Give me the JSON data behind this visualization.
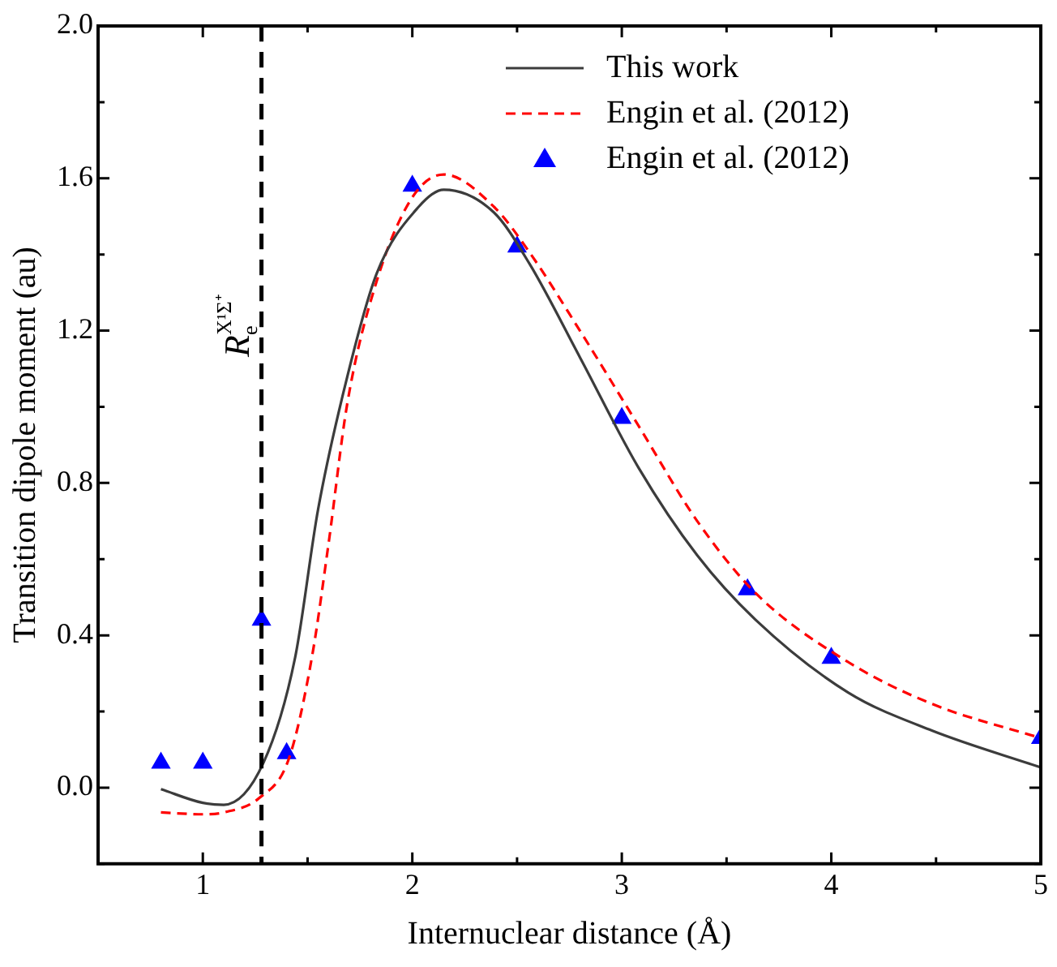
{
  "chart_data": {
    "type": "line",
    "xlabel": "Internuclear distance (Å)",
    "ylabel": "Transition dipole moment (au)",
    "xlim": [
      0.5,
      5
    ],
    "xticks": [
      1,
      2,
      3,
      4,
      5,
      {
        "value": 1.5,
        "label": null
      },
      {
        "value": 2.5,
        "label": null
      },
      {
        "value": 3.5,
        "label": null
      },
      {
        "value": 4.5,
        "label": null
      }
    ],
    "ylim": [
      -0.2,
      2.0
    ],
    "yticks": [
      {
        "value": 0,
        "label": "0.0"
      },
      {
        "value": 0.4,
        "label": "0.4"
      },
      {
        "value": 0.8,
        "label": "0.8"
      },
      {
        "value": 1.2,
        "label": "1.2"
      },
      {
        "value": 1.6,
        "label": "1.6"
      },
      {
        "value": 2,
        "label": "2.0"
      },
      {
        "value": 0.2,
        "label": null
      },
      {
        "value": 0.6,
        "label": null
      },
      {
        "value": 1.0,
        "label": null
      },
      {
        "value": 1.4,
        "label": null
      },
      {
        "value": 1.8,
        "label": null
      },
      {
        "value": -0.2,
        "label": null
      }
    ],
    "grid": false,
    "legend": "top right",
    "series": [
      {
        "name": "This work",
        "color": "#3c3c3c",
        "line_style": "solid",
        "marker": "none",
        "x": [
          0.8,
          1.0,
          1.1,
          1.29,
          1.44,
          1.55,
          1.69,
          1.83,
          2.03,
          2.15,
          2.39,
          2.56,
          2.8,
          3.08,
          3.36,
          3.64,
          4.08,
          4.48,
          5.0
        ],
        "values": [
          -0.004,
          -0.04,
          -0.045,
          0.066,
          0.34,
          0.73,
          1.08,
          1.35,
          1.525,
          1.57,
          1.51,
          1.375,
          1.13,
          0.84,
          0.61,
          0.44,
          0.25,
          0.15,
          0.053
        ]
      },
      {
        "name": "Engin et al. (2012)",
        "color": "#ff0000",
        "line_style": "dashed",
        "marker": "none",
        "x": [
          0.8,
          1.0,
          1.1,
          1.27,
          1.41,
          1.52,
          1.6,
          1.69,
          1.83,
          2.0,
          2.15,
          2.39,
          2.56,
          2.8,
          3.08,
          3.36,
          3.64,
          4.08,
          4.48,
          5.0
        ],
        "values": [
          -0.065,
          -0.07,
          -0.065,
          -0.027,
          0.075,
          0.34,
          0.64,
          1.01,
          1.33,
          1.55,
          1.61,
          1.525,
          1.405,
          1.2,
          0.95,
          0.7,
          0.51,
          0.33,
          0.22,
          0.13
        ]
      },
      {
        "name": "Engin et al. (2012)",
        "type": "scatter",
        "color": "#0000ff",
        "marker": "triangle",
        "x": [
          0.8,
          1.0,
          1.28,
          1.4,
          2.0,
          2.5,
          3.0,
          3.6,
          4.0,
          5.0
        ],
        "values": [
          0.065,
          0.065,
          0.44,
          0.09,
          1.58,
          1.42,
          0.97,
          0.52,
          0.34,
          0.13
        ]
      }
    ],
    "ref_lines": [
      {
        "axis": "x",
        "value": 1.28,
        "label": "R$_{e}$$^{X¹Σ⁺}$",
        "color": "#000000",
        "line_style": "dashed"
      }
    ]
  }
}
